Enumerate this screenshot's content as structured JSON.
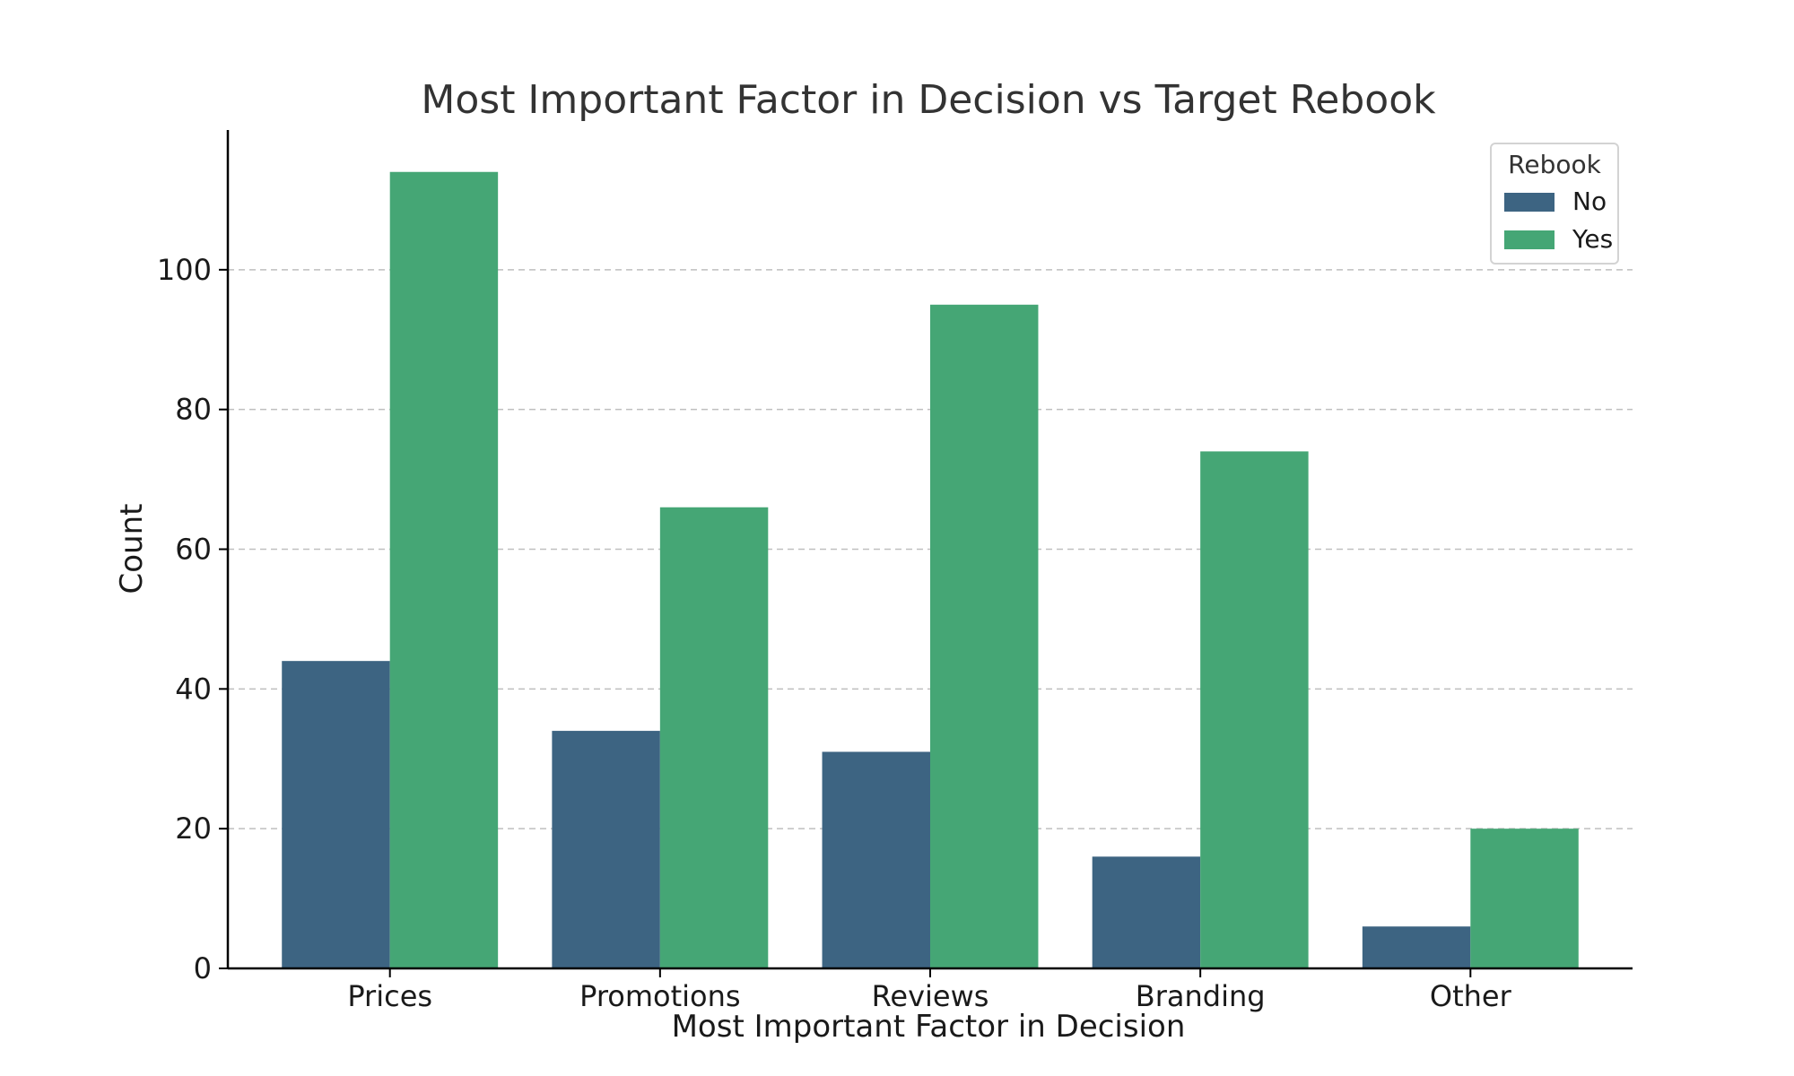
{
  "chart_data": {
    "type": "bar",
    "title": "Most Important Factor in Decision vs Target Rebook",
    "xlabel": "Most Important Factor in Decision",
    "ylabel": "Count",
    "categories": [
      "Prices",
      "Promotions",
      "Reviews",
      "Branding",
      "Other"
    ],
    "series": [
      {
        "name": "No",
        "color": "#3d6482",
        "values": [
          44,
          34,
          31,
          16,
          6
        ]
      },
      {
        "name": "Yes",
        "color": "#45a675",
        "values": [
          114,
          66,
          95,
          74,
          20
        ]
      }
    ],
    "ylim": [
      0,
      120
    ],
    "yticks": [
      0,
      20,
      40,
      60,
      80,
      100
    ],
    "grid": "y-dashed",
    "legend": {
      "title": "Rebook",
      "placement": "top-right"
    }
  }
}
